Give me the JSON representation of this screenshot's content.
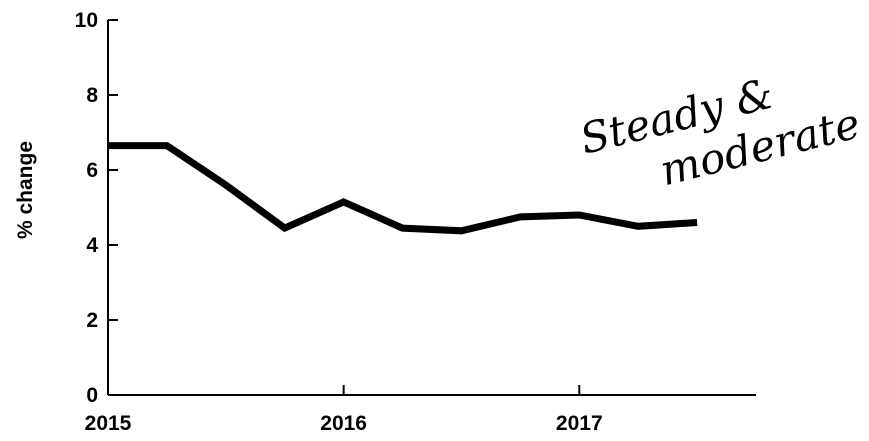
{
  "chart_data": {
    "type": "line",
    "title": "",
    "xlabel": "",
    "ylabel": "% change",
    "x_tick_labels": [
      "2015",
      "2016",
      "2017"
    ],
    "y_tick_labels": [
      "0",
      "2",
      "4",
      "6",
      "8",
      "10"
    ],
    "xlim": [
      2015,
      2017.75
    ],
    "ylim": [
      0,
      10
    ],
    "grid": false,
    "legend": "none",
    "series": [
      {
        "x": [
          2015.0,
          2015.25,
          2015.5,
          2015.75,
          2016.0,
          2016.25,
          2016.5,
          2016.75,
          2017.0,
          2017.25,
          2017.5
        ],
        "y": [
          6.65,
          6.65,
          5.6,
          4.45,
          5.15,
          4.45,
          4.38,
          4.75,
          4.8,
          4.5,
          4.6
        ],
        "color": "#000000"
      }
    ],
    "annotation": {
      "line1": "Steady &",
      "line2": "moderate"
    }
  }
}
